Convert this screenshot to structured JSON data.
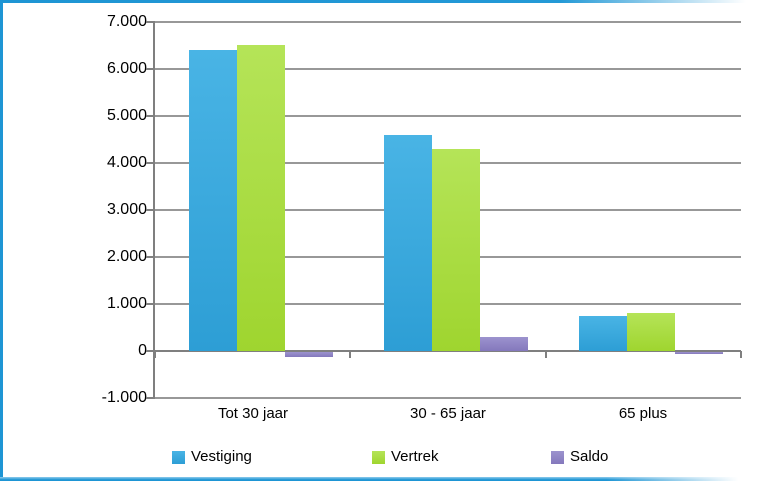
{
  "chart_data": {
    "type": "bar",
    "title": "",
    "xlabel": "",
    "ylabel": "",
    "categories": [
      "Tot 30 jaar",
      "30 - 65 jaar",
      "65 plus"
    ],
    "series": [
      {
        "name": "Vestiging",
        "color_top": "#49b4e5",
        "color_bottom": "#2d9ed5",
        "values": [
          6400,
          4600,
          750
        ]
      },
      {
        "name": "Vertrek",
        "color_top": "#b5e458",
        "color_bottom": "#9fd52f",
        "values": [
          6500,
          4300,
          800
        ]
      },
      {
        "name": "Saldo",
        "color_top": "#9c93ce",
        "color_bottom": "#8478bc",
        "values": [
          -100,
          300,
          -50
        ]
      }
    ],
    "ylim": [
      -1000,
      7000
    ],
    "ytick_step": 1000,
    "ytick_labels": [
      "7.000",
      "6.000",
      "5.000",
      "4.000",
      "3.000",
      "2.000",
      "1.000",
      "0",
      "-1.000"
    ],
    "grid": true,
    "legend_position": "bottom",
    "gridline_color": "#989898",
    "axis_color": "#7f7f7f",
    "frame_border_color": "#1e95d4"
  }
}
